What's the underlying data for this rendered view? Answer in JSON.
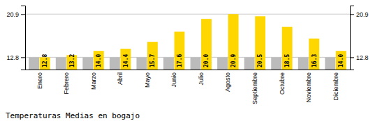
{
  "chart_data": {
    "type": "bar",
    "title": "Temperaturas Medias en bogajo",
    "categories": [
      "Enero",
      "Febrero",
      "Marzo",
      "Abril",
      "Mayo",
      "Junio",
      "Julio",
      "Agosto",
      "Septiembre",
      "Octubre",
      "Noviembre",
      "Diciembre"
    ],
    "series": [
      {
        "color": "#BBBBBB",
        "values": [
          12.8,
          12.8,
          12.8,
          12.8,
          12.8,
          12.8,
          12.8,
          12.8,
          12.8,
          12.8,
          12.8,
          12.8
        ]
      },
      {
        "color": "#FFD700",
        "values": [
          12.8,
          13.2,
          14.0,
          14.4,
          15.7,
          17.6,
          20.0,
          20.9,
          20.5,
          18.5,
          16.3,
          14.0
        ],
        "data_labels": true,
        "value_labels": [
          "12.8",
          "13.2",
          "14.0",
          "14.4",
          "15.7",
          "17.6",
          "20.0",
          "20.9",
          "20.5",
          "18.5",
          "16.3",
          "14.0"
        ]
      }
    ],
    "ylim": [
      10.5,
      22.5
    ],
    "yticks": [
      12.8,
      20.9
    ],
    "y2lim": [
      10.5,
      22.5
    ],
    "y2ticks": [
      12.8,
      20.9
    ],
    "grid": true
  }
}
